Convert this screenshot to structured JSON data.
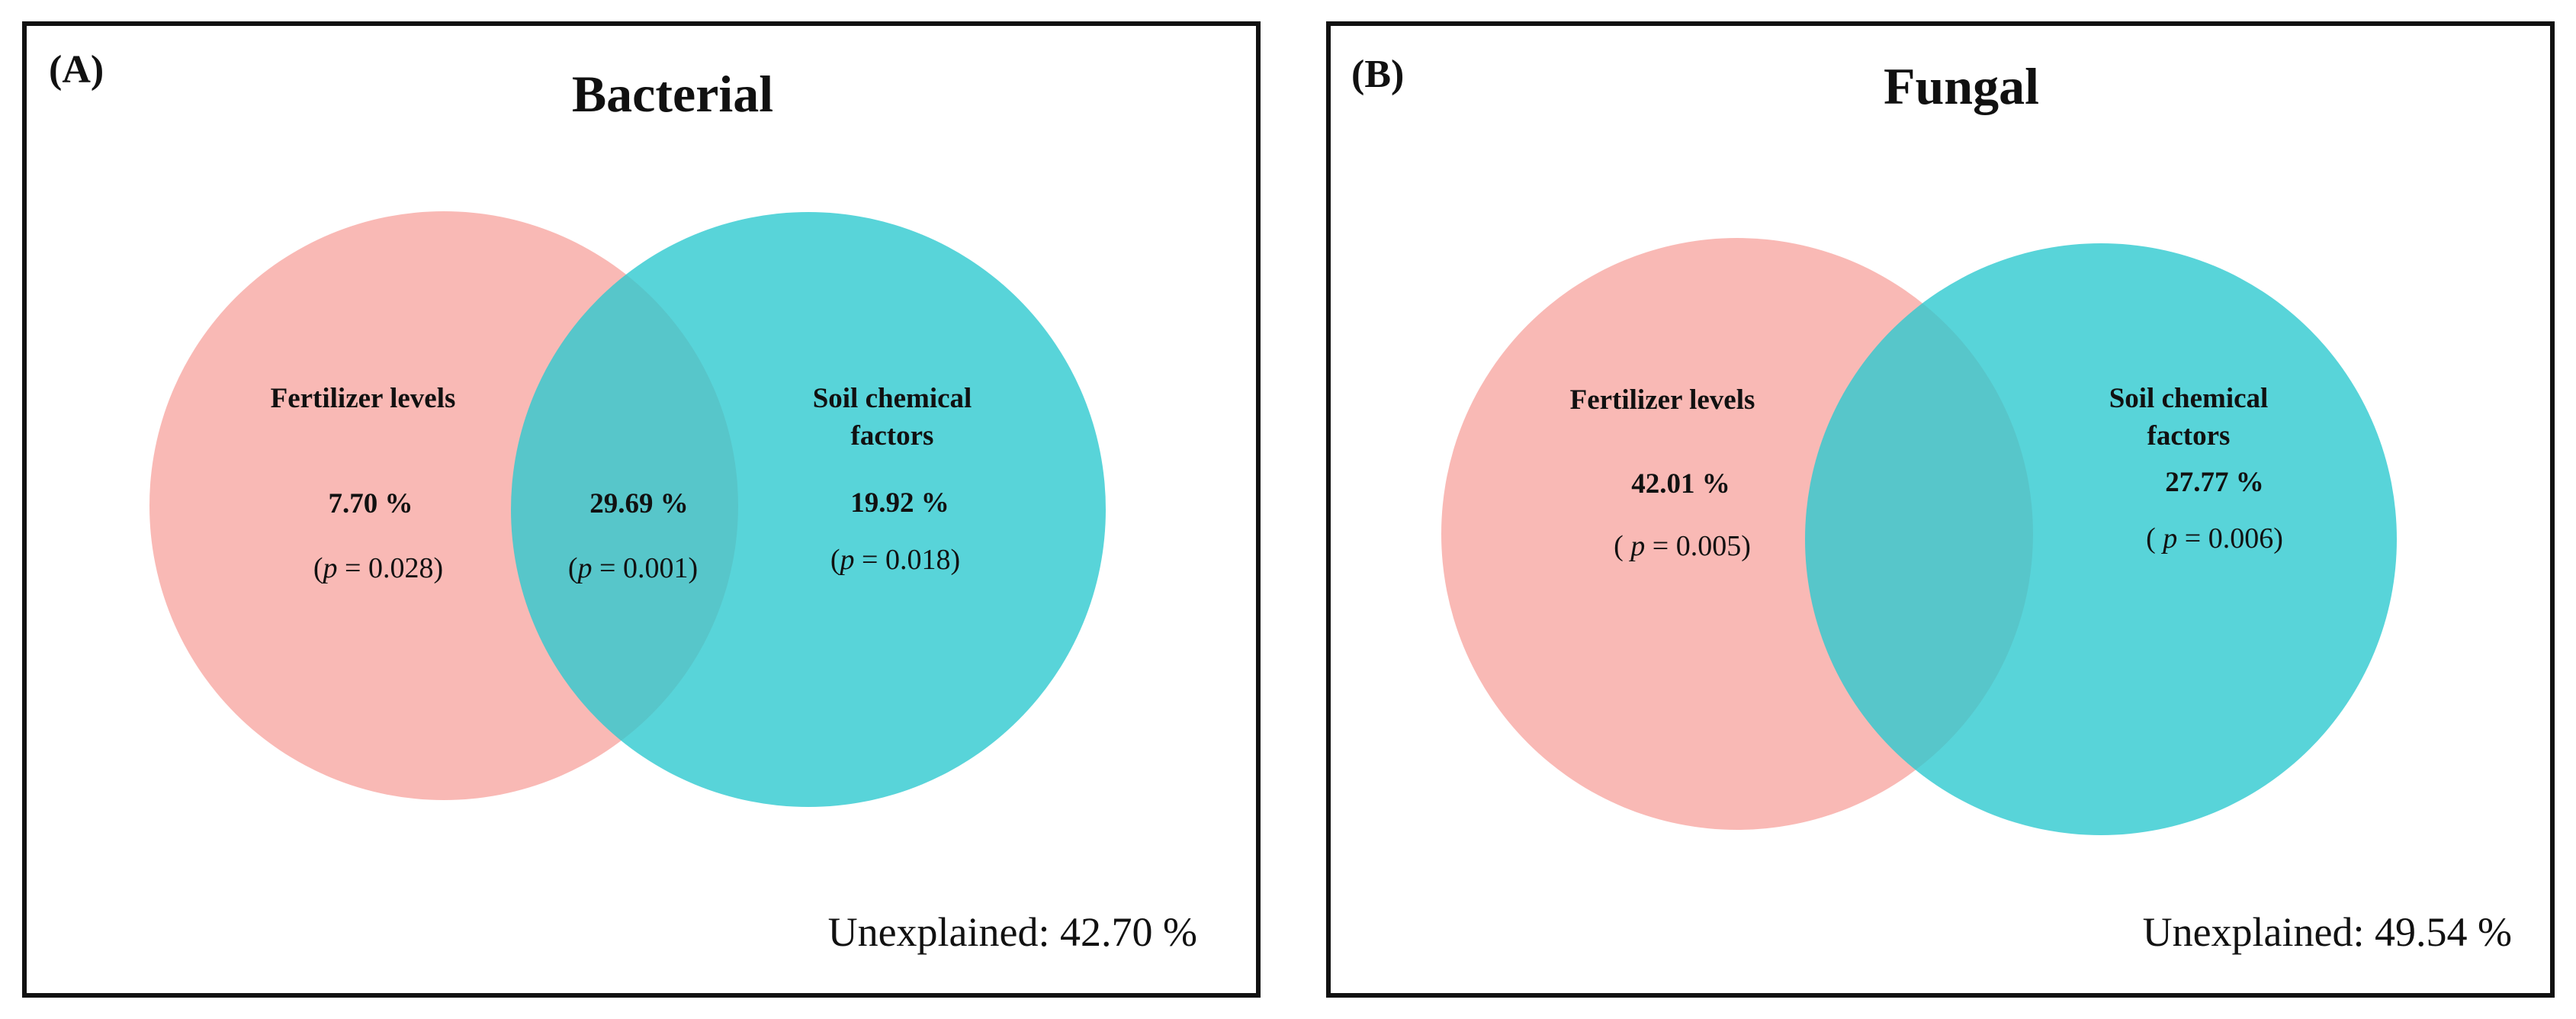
{
  "colors": {
    "fertilizer": "#f7a29c",
    "soil": "#2ec9cf",
    "frame": "#111111"
  },
  "panels": [
    {
      "label": "(A)",
      "title": "Bacterial",
      "sets": {
        "fertilizer": {
          "label_lines": [
            "Fertilizer levels"
          ],
          "percent": "7.70 %",
          "p_prefix": "(",
          "p_symbol": "p",
          "p_rest": " = 0.028)"
        },
        "overlap": {
          "percent": "29.69 %",
          "p_prefix": "(",
          "p_symbol": "p",
          "p_rest": " = 0.001)"
        },
        "soil": {
          "label_lines": [
            "Soil chemical",
            "factors"
          ],
          "percent": "19.92 %",
          "p_prefix": "(",
          "p_symbol": "p",
          "p_rest": " = 0.018)"
        }
      },
      "unexplained": "Unexplained: 42.70 %"
    },
    {
      "label": "(B)",
      "title": "Fungal",
      "sets": {
        "fertilizer": {
          "label_lines": [
            "Fertilizer levels"
          ],
          "percent": "42.01 %",
          "p_prefix": "( ",
          "p_symbol": "p",
          "p_rest": " = 0.005)"
        },
        "soil": {
          "label_lines": [
            "Soil chemical",
            "factors"
          ],
          "percent": "27.77 %",
          "p_prefix": "( ",
          "p_symbol": "p",
          "p_rest": " = 0.006)"
        }
      },
      "unexplained": "Unexplained: 49.54 %"
    }
  ]
}
